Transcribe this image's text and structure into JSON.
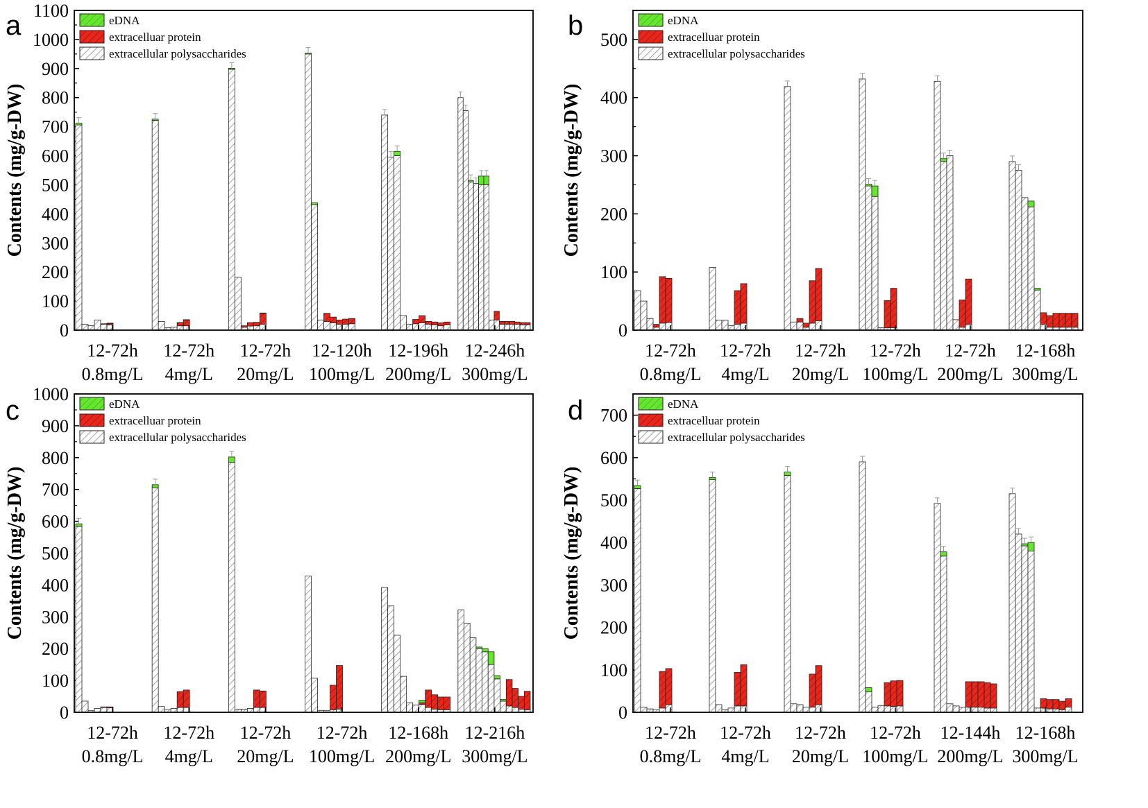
{
  "colors": {
    "edna": "#66e62e",
    "protein": "#e8261b",
    "polysaccharide": "#ffffff",
    "hatch": "#8a8a8a",
    "axis": "#000000",
    "errorbar": "#9a9a9a"
  },
  "legend": {
    "edna": "eDNA",
    "protein": "extracelluar protein",
    "polysaccharide": "extracellular polysaccharides"
  },
  "chart_data": [
    {
      "panel": "a",
      "type": "bar",
      "stacked": true,
      "ylabel": "Contents (mg/g-DW)",
      "ylim": [
        0,
        1100
      ],
      "ytick_step": 100,
      "series": [
        "extracellular polysaccharides",
        "extracelluar protein",
        "eDNA"
      ],
      "groups": [
        {
          "label1": "12-72h",
          "label2": "0.8mg/L",
          "bars": [
            [
              706,
              0,
              6
            ],
            [
              20,
              0,
              0
            ],
            [
              15,
              0,
              0
            ],
            [
              35,
              0,
              0
            ],
            [
              20,
              0,
              2
            ],
            [
              18,
              5,
              1
            ]
          ]
        },
        {
          "label1": "12-72h",
          "label2": "4mg/L",
          "bars": [
            [
              722,
              0,
              4
            ],
            [
              30,
              0,
              0
            ],
            [
              8,
              0,
              0
            ],
            [
              10,
              0,
              0
            ],
            [
              15,
              10,
              1
            ],
            [
              15,
              20,
              1
            ]
          ]
        },
        {
          "label1": "12-72h",
          "label2": "20mg/L",
          "bars": [
            [
              897,
              0,
              4
            ],
            [
              182,
              0,
              0
            ],
            [
              10,
              5,
              0
            ],
            [
              14,
              12,
              0
            ],
            [
              15,
              12,
              0
            ],
            [
              20,
              38,
              1
            ]
          ]
        },
        {
          "label1": "12-120h",
          "label2": "100mg/L",
          "bars": [
            [
              950,
              0,
              3
            ],
            [
              432,
              0,
              6
            ],
            [
              35,
              0,
              0
            ],
            [
              30,
              28,
              0
            ],
            [
              25,
              20,
              0
            ],
            [
              20,
              15,
              0
            ],
            [
              20,
              18,
              0
            ],
            [
              22,
              18,
              0
            ]
          ]
        },
        {
          "label1": "12-196h",
          "label2": "200mg/L",
          "bars": [
            [
              740,
              0,
              0
            ],
            [
              595,
              0,
              0
            ],
            [
              600,
              0,
              15
            ],
            [
              50,
              0,
              0
            ],
            [
              20,
              0,
              0
            ],
            [
              22,
              15,
              0
            ],
            [
              25,
              25,
              0
            ],
            [
              20,
              10,
              0
            ],
            [
              18,
              10,
              0
            ],
            [
              15,
              10,
              0
            ],
            [
              18,
              10,
              0
            ]
          ]
        },
        {
          "label1": "12-246h",
          "label2": "300mg/L",
          "bars": [
            [
              800,
              0,
              0
            ],
            [
              755,
              0,
              0
            ],
            [
              510,
              0,
              5
            ],
            [
              505,
              0,
              0
            ],
            [
              500,
              0,
              30
            ],
            [
              500,
              0,
              30
            ],
            [
              35,
              0,
              0
            ],
            [
              35,
              30,
              0
            ],
            [
              20,
              10,
              0
            ],
            [
              20,
              10,
              0
            ],
            [
              20,
              10,
              0
            ],
            [
              20,
              8,
              0
            ],
            [
              18,
              8,
              0
            ],
            [
              18,
              8,
              0
            ]
          ]
        }
      ]
    },
    {
      "panel": "b",
      "type": "bar",
      "stacked": true,
      "ylabel": "Contents (mg/g-DW)",
      "ylim": [
        0,
        550
      ],
      "ytick_step": 100,
      "series": [
        "extracellular polysaccharides",
        "extracelluar protein",
        "eDNA"
      ],
      "groups": [
        {
          "label1": "12-72h",
          "label2": "0.8mg/L",
          "bars": [
            [
              68,
              0,
              0
            ],
            [
              50,
              0,
              0
            ],
            [
              20,
              0,
              0
            ],
            [
              5,
              5,
              0
            ],
            [
              12,
              80,
              0
            ],
            [
              13,
              76,
              0
            ]
          ]
        },
        {
          "label1": "12-72h",
          "label2": "4mg/L",
          "bars": [
            [
              108,
              0,
              0
            ],
            [
              17,
              0,
              0
            ],
            [
              17,
              0,
              0
            ],
            [
              8,
              0,
              0
            ],
            [
              10,
              58,
              0
            ],
            [
              12,
              68,
              0
            ]
          ]
        },
        {
          "label1": "12-72h",
          "label2": "20mg/L",
          "bars": [
            [
              419,
              0,
              0
            ],
            [
              14,
              0,
              0
            ],
            [
              14,
              6,
              0
            ],
            [
              5,
              7,
              0
            ],
            [
              12,
              73,
              0
            ],
            [
              16,
              90,
              0
            ]
          ]
        },
        {
          "label1": "12-72h",
          "label2": "100mg/L",
          "bars": [
            [
              432,
              0,
              0
            ],
            [
              248,
              0,
              3
            ],
            [
              230,
              0,
              18
            ],
            [
              4,
              0,
              0
            ],
            [
              4,
              47,
              0
            ],
            [
              4,
              68,
              0
            ]
          ]
        },
        {
          "label1": "12-72h",
          "label2": "200mg/L",
          "bars": [
            [
              428,
              0,
              0
            ],
            [
              290,
              0,
              5
            ],
            [
              300,
              0,
              0
            ],
            [
              18,
              0,
              0
            ],
            [
              5,
              47,
              0
            ],
            [
              10,
              78,
              0
            ]
          ]
        },
        {
          "label1": "12-168h",
          "label2": "300mg/L",
          "bars": [
            [
              290,
              0,
              0
            ],
            [
              275,
              0,
              0
            ],
            [
              228,
              0,
              0
            ],
            [
              212,
              0,
              10
            ],
            [
              69,
              0,
              3
            ],
            [
              10,
              20,
              0
            ],
            [
              5,
              20,
              0
            ],
            [
              5,
              24,
              0
            ],
            [
              5,
              24,
              0
            ],
            [
              5,
              24,
              0
            ],
            [
              5,
              24,
              0
            ]
          ]
        }
      ]
    },
    {
      "panel": "c",
      "type": "bar",
      "stacked": true,
      "ylabel": "Contents (mg/g-DW)",
      "ylim": [
        0,
        1000
      ],
      "ytick_step": 100,
      "series": [
        "extracellular polysaccharides",
        "extracelluar protein",
        "eDNA"
      ],
      "groups": [
        {
          "label1": "12-72h",
          "label2": "0.8mg/L",
          "bars": [
            [
              584,
              0,
              8
            ],
            [
              35,
              0,
              0
            ],
            [
              5,
              0,
              0
            ],
            [
              12,
              0,
              0
            ],
            [
              15,
              2,
              0
            ],
            [
              14,
              3,
              0
            ]
          ]
        },
        {
          "label1": "12-72h",
          "label2": "4mg/L",
          "bars": [
            [
              705,
              0,
              10
            ],
            [
              18,
              0,
              0
            ],
            [
              8,
              0,
              0
            ],
            [
              12,
              0,
              0
            ],
            [
              15,
              50,
              0
            ],
            [
              15,
              55,
              0
            ]
          ]
        },
        {
          "label1": "12-72h",
          "label2": "20mg/L",
          "bars": [
            [
              785,
              0,
              17
            ],
            [
              10,
              0,
              0
            ],
            [
              10,
              0,
              0
            ],
            [
              12,
              0,
              0
            ],
            [
              15,
              55,
              0
            ],
            [
              15,
              52,
              0
            ]
          ]
        },
        {
          "label1": "12-72h",
          "label2": "100mg/L",
          "bars": [
            [
              428,
              0,
              0
            ],
            [
              107,
              0,
              0
            ],
            [
              6,
              0,
              0
            ],
            [
              5,
              0,
              0
            ],
            [
              8,
              77,
              0
            ],
            [
              10,
              137,
              0
            ]
          ]
        },
        {
          "label1": "12-168h",
          "label2": "200mg/L",
          "bars": [
            [
              392,
              0,
              0
            ],
            [
              334,
              0,
              0
            ],
            [
              242,
              0,
              0
            ],
            [
              113,
              0,
              0
            ],
            [
              30,
              0,
              0
            ],
            [
              23,
              0,
              0
            ],
            [
              25,
              5,
              8
            ],
            [
              15,
              55,
              0
            ],
            [
              10,
              45,
              0
            ],
            [
              8,
              40,
              0
            ],
            [
              8,
              40,
              0
            ]
          ]
        },
        {
          "label1": "12-216h",
          "label2": "300mg/L",
          "bars": [
            [
              322,
              0,
              0
            ],
            [
              280,
              0,
              0
            ],
            [
              234,
              0,
              0
            ],
            [
              200,
              0,
              5
            ],
            [
              190,
              0,
              10
            ],
            [
              150,
              0,
              40
            ],
            [
              105,
              0,
              10
            ],
            [
              35,
              0,
              5
            ],
            [
              20,
              83,
              0
            ],
            [
              15,
              60,
              0
            ],
            [
              10,
              40,
              0
            ],
            [
              8,
              58,
              0
            ]
          ]
        }
      ]
    },
    {
      "panel": "d",
      "type": "bar",
      "stacked": true,
      "ylabel": "Contents (mg/g-DW)",
      "ylim": [
        0,
        750
      ],
      "ytick_step": 100,
      "series": [
        "extracellular polysaccharides",
        "extracelluar protein",
        "eDNA"
      ],
      "groups": [
        {
          "label1": "12-72h",
          "label2": "0.8mg/L",
          "bars": [
            [
              527,
              0,
              7
            ],
            [
              12,
              0,
              0
            ],
            [
              8,
              0,
              0
            ],
            [
              6,
              0,
              0
            ],
            [
              10,
              86,
              0
            ],
            [
              18,
              85,
              0
            ]
          ]
        },
        {
          "label1": "12-72h",
          "label2": "4mg/L",
          "bars": [
            [
              548,
              0,
              5
            ],
            [
              18,
              0,
              0
            ],
            [
              6,
              0,
              0
            ],
            [
              10,
              0,
              0
            ],
            [
              15,
              79,
              0
            ],
            [
              15,
              97,
              0
            ]
          ]
        },
        {
          "label1": "12-72h",
          "label2": "20mg/L",
          "bars": [
            [
              558,
              0,
              8
            ],
            [
              20,
              0,
              0
            ],
            [
              18,
              0,
              0
            ],
            [
              12,
              0,
              0
            ],
            [
              12,
              78,
              0
            ],
            [
              18,
              92,
              0
            ]
          ]
        },
        {
          "label1": "12-72h",
          "label2": "100mg/L",
          "bars": [
            [
              590,
              0,
              0
            ],
            [
              48,
              0,
              10
            ],
            [
              12,
              0,
              0
            ],
            [
              16,
              0,
              0
            ],
            [
              15,
              55,
              0
            ],
            [
              14,
              60,
              0
            ],
            [
              15,
              60,
              0
            ]
          ]
        },
        {
          "label1": "12-144h",
          "label2": "200mg/L",
          "bars": [
            [
              492,
              0,
              0
            ],
            [
              368,
              0,
              10
            ],
            [
              20,
              0,
              0
            ],
            [
              15,
              0,
              0
            ],
            [
              12,
              0,
              0
            ],
            [
              12,
              60,
              0
            ],
            [
              12,
              60,
              0
            ],
            [
              12,
              60,
              0
            ],
            [
              10,
              60,
              0
            ],
            [
              10,
              57,
              0
            ]
          ]
        },
        {
          "label1": "12-168h",
          "label2": "300mg/L",
          "bars": [
            [
              515,
              0,
              0
            ],
            [
              420,
              0,
              0
            ],
            [
              392,
              0,
              5
            ],
            [
              380,
              0,
              20
            ],
            [
              10,
              0,
              0
            ],
            [
              10,
              22,
              0
            ],
            [
              8,
              22,
              0
            ],
            [
              8,
              22,
              0
            ],
            [
              6,
              20,
              0
            ],
            [
              12,
              20,
              0
            ]
          ]
        }
      ]
    }
  ]
}
